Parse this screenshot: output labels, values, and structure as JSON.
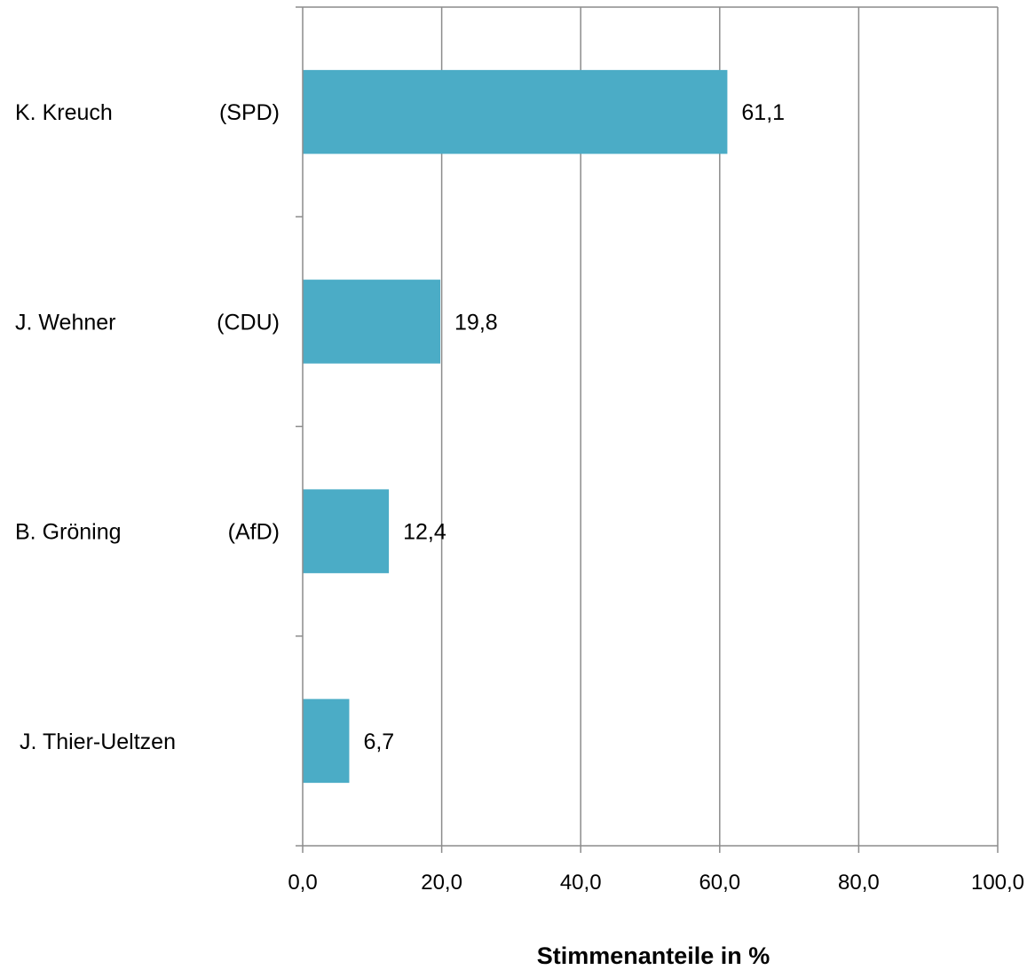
{
  "chart_data": {
    "type": "bar",
    "orientation": "horizontal",
    "categories": [
      {
        "name": "K. Kreuch",
        "party": "(SPD)"
      },
      {
        "name": "J. Wehner",
        "party": "(CDU)"
      },
      {
        "name": "B. Gröning",
        "party": "(AfD)"
      },
      {
        "name": "J. Thier-Ueltzen",
        "party": ""
      }
    ],
    "values": [
      61.1,
      19.8,
      12.4,
      6.7
    ],
    "value_labels": [
      "61,1",
      "19,8",
      "12,4",
      "6,7"
    ],
    "xlim": [
      0,
      100
    ],
    "x_ticks": [
      0,
      20,
      40,
      60,
      80,
      100
    ],
    "x_tick_labels": [
      "0,0",
      "20,0",
      "40,0",
      "60,0",
      "80,0",
      "100,0"
    ],
    "xlabel": "Stimmenanteile in %",
    "ylabel": "",
    "title": "",
    "grid": "vertical",
    "legend": "none",
    "bar_color": "#4BACC6",
    "grid_color": "#8C8C8C"
  }
}
